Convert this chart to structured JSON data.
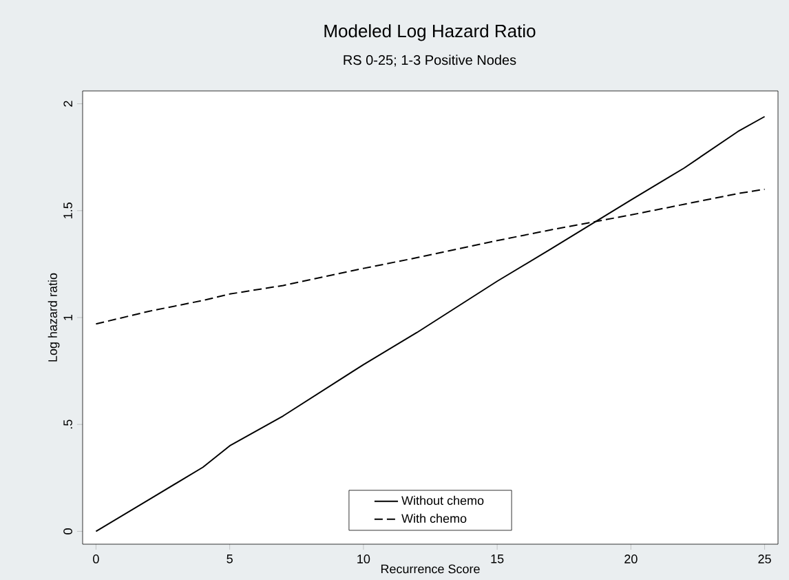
{
  "chart_data": {
    "type": "line",
    "title": "Modeled Log Hazard Ratio",
    "subtitle": "RS 0-25; 1-3 Positive Nodes",
    "xlabel": "Recurrence Score",
    "ylabel": "Log hazard ratio",
    "x": [
      0,
      2,
      4,
      5,
      7,
      10,
      12,
      15,
      17,
      20,
      22,
      24,
      25
    ],
    "series": [
      {
        "name": "Without chemo",
        "color": "#000000",
        "line_style": "solid",
        "values": [
          0,
          0.15,
          0.3,
          0.4,
          0.54,
          0.78,
          0.93,
          1.17,
          1.32,
          1.55,
          1.7,
          1.87,
          1.94
        ]
      },
      {
        "name": "With chemo",
        "color": "#000000",
        "line_style": "dashed",
        "values": [
          0.97,
          1.03,
          1.08,
          1.11,
          1.15,
          1.23,
          1.28,
          1.36,
          1.41,
          1.48,
          1.53,
          1.58,
          1.6
        ]
      }
    ],
    "xlim": [
      -0.5,
      25.5
    ],
    "ylim": [
      -0.06,
      2.06
    ],
    "xticks": [
      0,
      5,
      10,
      15,
      20,
      25
    ],
    "yticks": [
      0,
      {
        "value": 0.5,
        "label": ".5"
      },
      1,
      1.5,
      2
    ],
    "grid": false,
    "legend": "bottom",
    "marker": "none"
  }
}
